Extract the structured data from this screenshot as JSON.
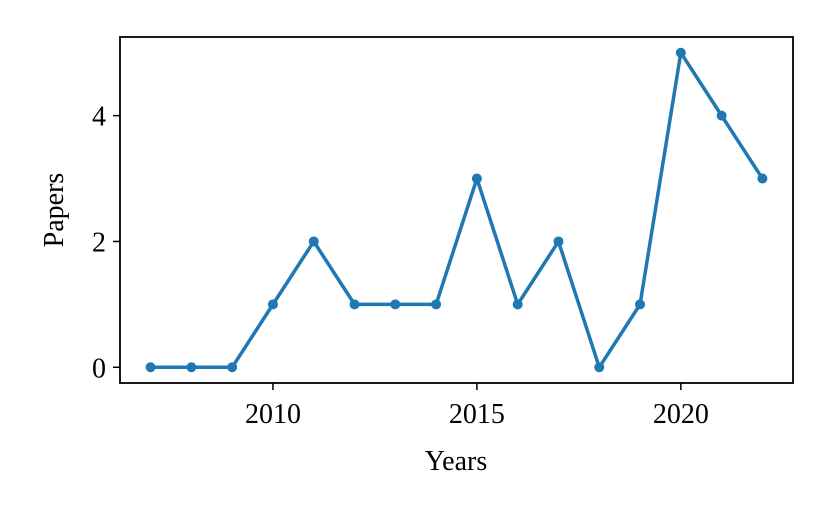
{
  "chart_data": {
    "type": "line",
    "x_label": "Years",
    "y_label": "Papers",
    "x": [
      2007,
      2008,
      2009,
      2010,
      2011,
      2012,
      2013,
      2014,
      2015,
      2016,
      2017,
      2018,
      2019,
      2020,
      2021,
      2022
    ],
    "series": [
      {
        "color": "#1f77b4",
        "values": [
          0,
          0,
          0,
          1,
          2,
          1,
          1,
          1,
          3,
          1,
          2,
          0,
          1,
          5,
          4,
          3
        ]
      }
    ],
    "xlim": [
      2006.25,
      2022.75
    ],
    "xticks": [
      2010,
      2015,
      2020
    ],
    "ylim": [
      -0.25,
      5.25
    ],
    "yticks": [
      0,
      2,
      4
    ],
    "grid": false
  }
}
